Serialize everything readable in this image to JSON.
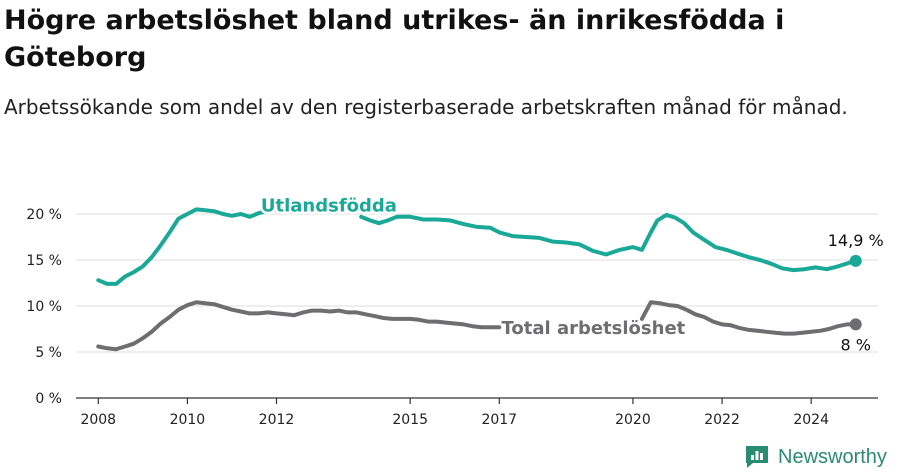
{
  "header": {
    "title": "Högre arbetslöshet bland utrikes- än inrikesfödda i Göteborg",
    "subtitle": "Arbetssökande som andel av den registerbaserade arbetskraften månad för månad."
  },
  "brand": {
    "name": "Newsworthy",
    "icon": "newsworthy-logo-icon",
    "color": "#2a8b74"
  },
  "colors": {
    "utlandsfodda": "#1aa897",
    "total": "#6d6d72",
    "grid": "#dddddd",
    "axis": "#333333"
  },
  "chart_data": {
    "type": "line",
    "xlim": [
      2007.5,
      2025.5
    ],
    "ylim": [
      0,
      20
    ],
    "y_ticks": [
      {
        "value": 0,
        "label": "0 %"
      },
      {
        "value": 5,
        "label": "5 %"
      },
      {
        "value": 10,
        "label": "10 %"
      },
      {
        "value": 15,
        "label": "15 %"
      },
      {
        "value": 20,
        "label": "20 %"
      }
    ],
    "x_ticks": [
      {
        "value": 2008,
        "label": "2008"
      },
      {
        "value": 2010,
        "label": "2010"
      },
      {
        "value": 2012,
        "label": "2012"
      },
      {
        "value": 2015,
        "label": "2015"
      },
      {
        "value": 2017,
        "label": "2017"
      },
      {
        "value": 2020,
        "label": "2020"
      },
      {
        "value": 2022,
        "label": "2022"
      },
      {
        "value": 2024,
        "label": "2024"
      }
    ],
    "grid": "horizontal",
    "legend": "inline labels",
    "series": [
      {
        "name": "Utlandsfödda",
        "color": "#1aa897",
        "label_at": [
          2011.65,
          20.9
        ],
        "end_label": "14,9 %",
        "segments": [
          [
            [
              2008.0,
              12.8
            ],
            [
              2008.2,
              12.4
            ],
            [
              2008.4,
              12.4
            ],
            [
              2008.6,
              13.2
            ],
            [
              2008.8,
              13.7
            ],
            [
              2009.0,
              14.3
            ],
            [
              2009.2,
              15.3
            ],
            [
              2009.4,
              16.6
            ],
            [
              2009.6,
              18.0
            ],
            [
              2009.8,
              19.5
            ],
            [
              2010.0,
              20.0
            ],
            [
              2010.2,
              20.5
            ],
            [
              2010.4,
              20.4
            ],
            [
              2010.6,
              20.3
            ],
            [
              2010.8,
              20.0
            ],
            [
              2011.0,
              19.8
            ],
            [
              2011.2,
              20.0
            ],
            [
              2011.4,
              19.7
            ],
            [
              2011.6,
              20.1
            ],
            [
              2011.8,
              20.3
            ],
            [
              2012.0,
              20.5
            ],
            [
              2012.1,
              20.9
            ]
          ],
          [
            [
              2013.9,
              19.7
            ],
            [
              2014.1,
              19.3
            ],
            [
              2014.3,
              19.0
            ],
            [
              2014.5,
              19.3
            ],
            [
              2014.7,
              19.7
            ],
            [
              2015.0,
              19.7
            ],
            [
              2015.3,
              19.4
            ],
            [
              2015.6,
              19.4
            ],
            [
              2015.9,
              19.3
            ],
            [
              2016.2,
              18.9
            ],
            [
              2016.5,
              18.6
            ],
            [
              2016.8,
              18.5
            ],
            [
              2017.0,
              18.0
            ],
            [
              2017.3,
              17.6
            ],
            [
              2017.6,
              17.5
            ],
            [
              2017.9,
              17.4
            ],
            [
              2018.2,
              17.0
            ],
            [
              2018.5,
              16.9
            ],
            [
              2018.8,
              16.7
            ],
            [
              2019.1,
              16.0
            ],
            [
              2019.4,
              15.6
            ],
            [
              2019.7,
              16.1
            ],
            [
              2020.0,
              16.4
            ],
            [
              2020.2,
              16.1
            ],
            [
              2020.4,
              18.0
            ],
            [
              2020.55,
              19.3
            ],
            [
              2020.75,
              19.9
            ],
            [
              2020.95,
              19.6
            ],
            [
              2021.15,
              19.0
            ],
            [
              2021.35,
              18.0
            ],
            [
              2021.6,
              17.2
            ],
            [
              2021.85,
              16.4
            ],
            [
              2022.1,
              16.1
            ],
            [
              2022.35,
              15.7
            ],
            [
              2022.6,
              15.3
            ],
            [
              2022.85,
              15.0
            ],
            [
              2023.1,
              14.6
            ],
            [
              2023.35,
              14.1
            ],
            [
              2023.6,
              13.9
            ],
            [
              2023.85,
              14.0
            ],
            [
              2024.1,
              14.2
            ],
            [
              2024.35,
              14.0
            ],
            [
              2024.6,
              14.3
            ],
            [
              2024.85,
              14.7
            ],
            [
              2025.0,
              14.9
            ]
          ]
        ]
      },
      {
        "name": "Total arbetslöshet",
        "color": "#6d6d72",
        "label_at": [
          2017.05,
          7.6
        ],
        "end_label": "8 %",
        "segments": [
          [
            [
              2008.0,
              5.6
            ],
            [
              2008.2,
              5.4
            ],
            [
              2008.4,
              5.3
            ],
            [
              2008.6,
              5.6
            ],
            [
              2008.8,
              5.9
            ],
            [
              2009.0,
              6.5
            ],
            [
              2009.2,
              7.2
            ],
            [
              2009.4,
              8.1
            ],
            [
              2009.6,
              8.8
            ],
            [
              2009.8,
              9.6
            ],
            [
              2010.0,
              10.1
            ],
            [
              2010.2,
              10.4
            ],
            [
              2010.4,
              10.3
            ],
            [
              2010.6,
              10.2
            ],
            [
              2010.8,
              9.9
            ],
            [
              2011.0,
              9.6
            ],
            [
              2011.2,
              9.4
            ],
            [
              2011.4,
              9.2
            ],
            [
              2011.6,
              9.2
            ],
            [
              2011.8,
              9.3
            ],
            [
              2012.0,
              9.2
            ],
            [
              2012.2,
              9.1
            ],
            [
              2012.4,
              9.0
            ],
            [
              2012.6,
              9.3
            ],
            [
              2012.8,
              9.5
            ],
            [
              2013.0,
              9.5
            ],
            [
              2013.2,
              9.4
            ],
            [
              2013.4,
              9.5
            ],
            [
              2013.6,
              9.3
            ],
            [
              2013.8,
              9.3
            ],
            [
              2014.0,
              9.1
            ],
            [
              2014.2,
              8.9
            ],
            [
              2014.4,
              8.7
            ],
            [
              2014.6,
              8.6
            ],
            [
              2014.8,
              8.6
            ],
            [
              2015.0,
              8.6
            ],
            [
              2015.2,
              8.5
            ],
            [
              2015.4,
              8.3
            ],
            [
              2015.6,
              8.3
            ],
            [
              2015.8,
              8.2
            ],
            [
              2016.0,
              8.1
            ],
            [
              2016.2,
              8.0
            ],
            [
              2016.4,
              7.8
            ],
            [
              2016.6,
              7.7
            ],
            [
              2016.8,
              7.7
            ],
            [
              2017.0,
              7.7
            ]
          ],
          [
            [
              2020.2,
              8.6
            ],
            [
              2020.4,
              10.4
            ],
            [
              2020.6,
              10.3
            ],
            [
              2020.8,
              10.1
            ],
            [
              2021.0,
              10.0
            ],
            [
              2021.2,
              9.6
            ],
            [
              2021.4,
              9.1
            ],
            [
              2021.6,
              8.8
            ],
            [
              2021.8,
              8.3
            ],
            [
              2022.0,
              8.0
            ],
            [
              2022.2,
              7.9
            ],
            [
              2022.4,
              7.6
            ],
            [
              2022.6,
              7.4
            ],
            [
              2022.8,
              7.3
            ],
            [
              2023.0,
              7.2
            ],
            [
              2023.2,
              7.1
            ],
            [
              2023.4,
              7.0
            ],
            [
              2023.6,
              7.0
            ],
            [
              2023.8,
              7.1
            ],
            [
              2024.0,
              7.2
            ],
            [
              2024.2,
              7.3
            ],
            [
              2024.4,
              7.5
            ],
            [
              2024.6,
              7.8
            ],
            [
              2024.8,
              8.0
            ],
            [
              2025.0,
              8.0
            ]
          ]
        ]
      }
    ]
  }
}
